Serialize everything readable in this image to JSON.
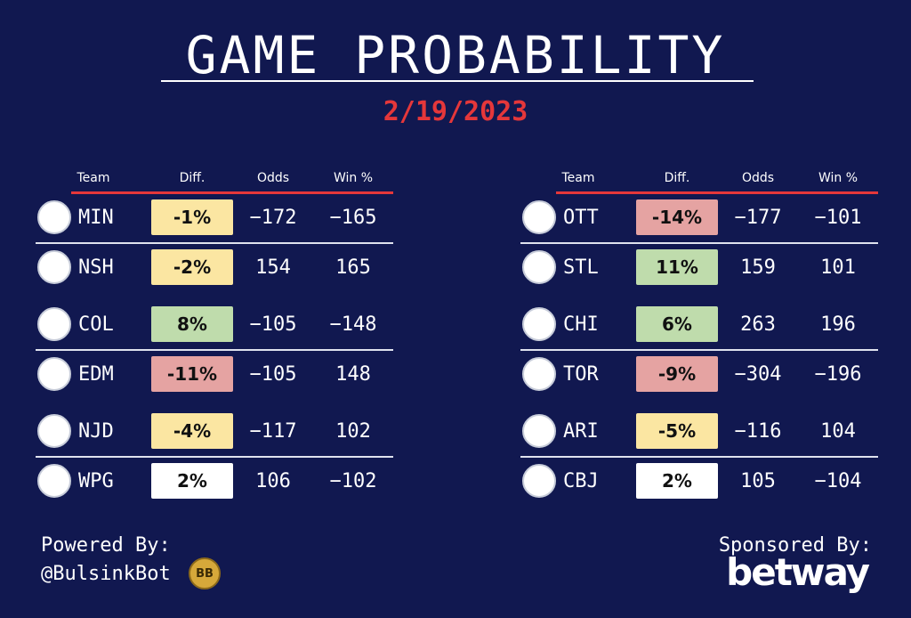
{
  "header": {
    "title": "GAME PROBABILITY",
    "date": "2/19/2023"
  },
  "columns": {
    "team": "Team",
    "diff": "Diff.",
    "odds": "Odds",
    "win": "Win %"
  },
  "colors": {
    "yellow": "#fbe6a2",
    "green": "#bfdcac",
    "red": "#e5a3a2",
    "white": "#ffffff"
  },
  "left_games": [
    {
      "team": "MIN",
      "logo_icon": "wild-logo-icon",
      "diff": "-1%",
      "diff_color": "yellow",
      "odds": "−172",
      "win": "−165"
    },
    {
      "team": "NSH",
      "logo_icon": "predators-logo-icon",
      "diff": "-2%",
      "diff_color": "yellow",
      "odds": "154",
      "win": "165"
    },
    {
      "team": "COL",
      "logo_icon": "avalanche-logo-icon",
      "diff": "8%",
      "diff_color": "green",
      "odds": "−105",
      "win": "−148"
    },
    {
      "team": "EDM",
      "logo_icon": "oilers-logo-icon",
      "diff": "-11%",
      "diff_color": "red",
      "odds": "−105",
      "win": "148"
    },
    {
      "team": "NJD",
      "logo_icon": "devils-logo-icon",
      "diff": "-4%",
      "diff_color": "yellow",
      "odds": "−117",
      "win": "102"
    },
    {
      "team": "WPG",
      "logo_icon": "jets-logo-icon",
      "diff": "2%",
      "diff_color": "white",
      "odds": "106",
      "win": "−102"
    }
  ],
  "right_games": [
    {
      "team": "OTT",
      "logo_icon": "senators-logo-icon",
      "diff": "-14%",
      "diff_color": "red",
      "odds": "−177",
      "win": "−101"
    },
    {
      "team": "STL",
      "logo_icon": "blues-logo-icon",
      "diff": "11%",
      "diff_color": "green",
      "odds": "159",
      "win": "101"
    },
    {
      "team": "CHI",
      "logo_icon": "blackhawks-logo-icon",
      "diff": "6%",
      "diff_color": "green",
      "odds": "263",
      "win": "196"
    },
    {
      "team": "TOR",
      "logo_icon": "maple-leafs-logo-icon",
      "diff": "-9%",
      "diff_color": "red",
      "odds": "−304",
      "win": "−196"
    },
    {
      "team": "ARI",
      "logo_icon": "coyotes-logo-icon",
      "diff": "-5%",
      "diff_color": "yellow",
      "odds": "−116",
      "win": "104"
    },
    {
      "team": "CBJ",
      "logo_icon": "blue-jackets-logo-icon",
      "diff": "2%",
      "diff_color": "white",
      "odds": "105",
      "win": "−104"
    }
  ],
  "footer": {
    "powered_label": "Powered By:",
    "handle": "@BulsinkBot",
    "badge_text": "BB",
    "sponsored_label": "Sponsored By:",
    "sponsor": "betway"
  }
}
